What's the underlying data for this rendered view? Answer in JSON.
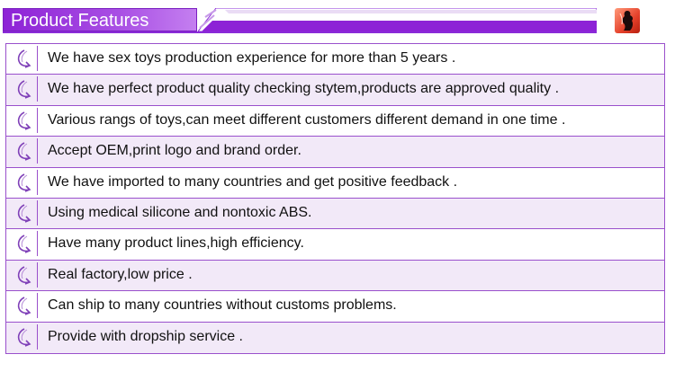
{
  "header": {
    "title": "Product Features",
    "logo_icon": "silhouette-figure-icon",
    "accent_color": "#8d22d6"
  },
  "features": [
    "We have sex toys production experience for more than 5 years .",
    "We have perfect product quality checking stytem,products are approved quality .",
    "Various rangs of toys,can meet different customers different demand in one time .",
    "Accept OEM,print logo and brand order.",
    "We have imported to many countries and get positive feedback .",
    "Using medical silicone and nontoxic ABS.",
    "Have many product lines,high efficiency.",
    "Real factory,low price .",
    "Can ship to many countries without customs problems.",
    "Provide with dropship service ."
  ],
  "row_icon": "curved-arrow-icon"
}
